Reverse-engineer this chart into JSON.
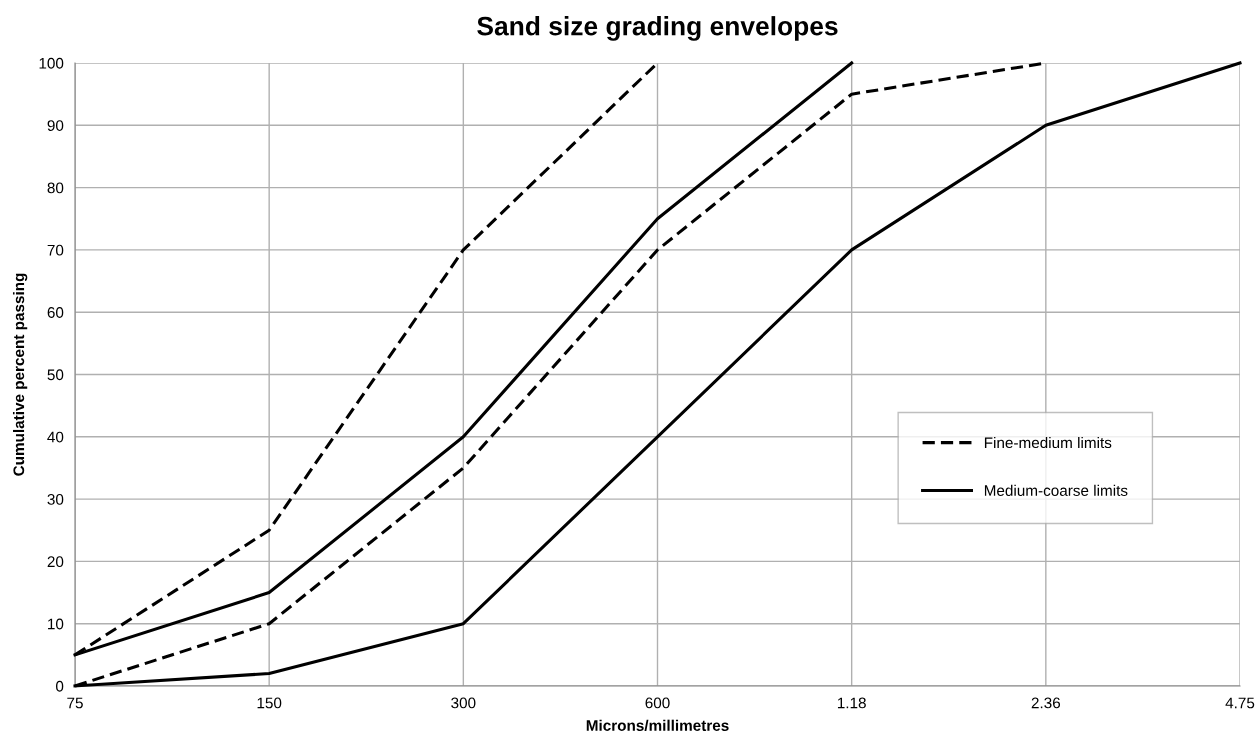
{
  "chart_data": {
    "type": "line",
    "title": "Sand size grading envelopes",
    "xlabel": "Microns/millimetres",
    "ylabel": "Cumulative percent passing",
    "categories": [
      "75",
      "150",
      "300",
      "600",
      "1.18",
      "2.36",
      "4.75"
    ],
    "series": [
      {
        "name": "Fine-medium limits",
        "color": "#000000",
        "line_style": "dashed",
        "values": [
          5,
          25,
          70,
          100,
          null,
          null,
          null
        ]
      },
      {
        "color": "#000000",
        "line_style": "dashed",
        "values": [
          0,
          10,
          35,
          70,
          95,
          100,
          null
        ]
      },
      {
        "name": "Medium-coarse limits",
        "color": "#000000",
        "line_style": "solid",
        "values": [
          5,
          15,
          40,
          75,
          100,
          null,
          null
        ]
      },
      {
        "color": "#000000",
        "line_style": "solid",
        "values": [
          0,
          2,
          10,
          40,
          70,
          90,
          100
        ]
      }
    ],
    "ylim": [
      0,
      100
    ],
    "yticks": [
      0,
      10,
      20,
      30,
      40,
      50,
      60,
      70,
      80,
      90,
      100
    ],
    "grid": true,
    "legend": "right",
    "marker": "none"
  }
}
